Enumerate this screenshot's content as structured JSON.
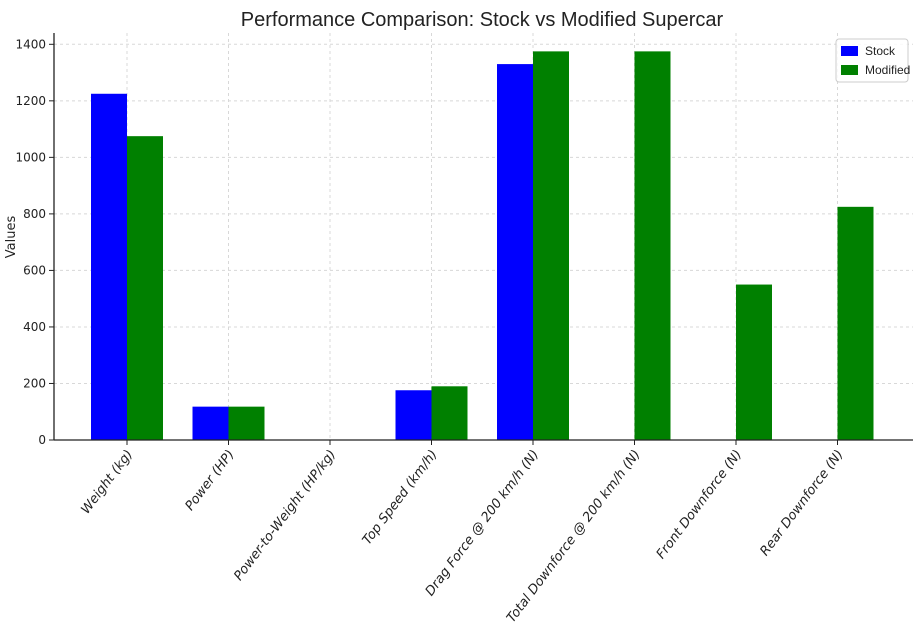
{
  "chart_data": {
    "type": "bar",
    "title": "Performance Comparison: Stock vs Modified Supercar",
    "xlabel": "",
    "ylabel": "Values",
    "ylim": [
      0,
      1440
    ],
    "yticks": [
      0,
      200,
      400,
      600,
      800,
      1000,
      1200,
      1400
    ],
    "grid": true,
    "legend_position": "top-right",
    "categories": [
      "Weight (kg)",
      "Power (HP)",
      "Power-to-Weight (HP/kg)",
      "Top Speed (km/h)",
      "Drag Force @ 200 km/h (N)",
      "Total Downforce @ 200 km/h (N)",
      "Front Downforce (N)",
      "Rear Downforce (N)"
    ],
    "series": [
      {
        "name": "Stock",
        "color": "#0000ff",
        "values": [
          1225,
          118,
          0.1,
          176,
          1330,
          0,
          0,
          0
        ]
      },
      {
        "name": "Modified",
        "color": "#008000",
        "values": [
          1075,
          118,
          0.11,
          190,
          1375,
          1375,
          550,
          825
        ]
      }
    ]
  }
}
